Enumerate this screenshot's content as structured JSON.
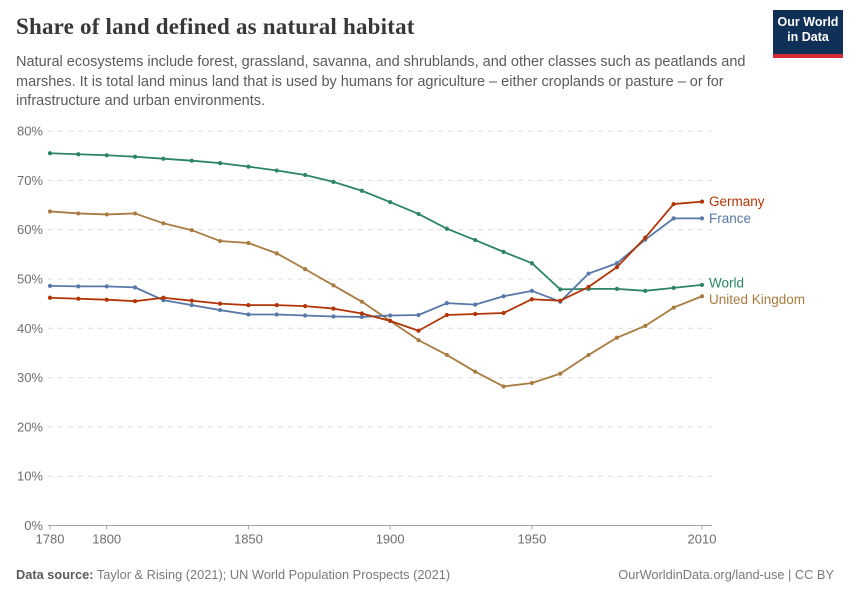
{
  "header": {
    "title": "Share of land defined as natural habitat",
    "subtitle_lines": [
      "Natural ecosystems include forest, grassland, savanna, and shrublands, and other classes such as peatlands and",
      "marshes. It is total land minus land that is used by humans for agriculture – either croplands or pasture – or for",
      "infrastructure and urban environments."
    ],
    "logo": {
      "line1": "Our World",
      "line2": "in Data",
      "bg_color": "#103057",
      "stripe_color": "#d42b37"
    }
  },
  "chart_data": {
    "type": "line",
    "title": "Share of land defined as natural habitat",
    "xlabel": "",
    "ylabel": "",
    "ylim": [
      0,
      80
    ],
    "yticks": [
      0,
      10,
      20,
      30,
      40,
      50,
      60,
      70,
      80
    ],
    "ytick_suffix": "%",
    "xticks": [
      1780,
      1800,
      1850,
      1900,
      1950,
      2010
    ],
    "grid": "horizontal-dashed",
    "legend_position": "right-line-end-labels",
    "x": [
      1780,
      1790,
      1800,
      1810,
      1820,
      1830,
      1840,
      1850,
      1860,
      1870,
      1880,
      1890,
      1900,
      1910,
      1920,
      1930,
      1940,
      1950,
      1960,
      1970,
      1980,
      1990,
      2000,
      2010
    ],
    "series": [
      {
        "name": "World",
        "color": "#2c8465",
        "label_dy": -2,
        "values": [
          75.5,
          75.3,
          75.1,
          74.8,
          74.4,
          74.0,
          73.5,
          72.8,
          72.0,
          71.1,
          69.7,
          67.9,
          65.6,
          63.2,
          60.2,
          57.9,
          55.5,
          53.2,
          47.9,
          48.0,
          48.0,
          47.6,
          48.2,
          48.8
        ]
      },
      {
        "name": "United Kingdom",
        "color": "#a87b42",
        "label_dy": 3,
        "values": [
          63.7,
          63.3,
          63.1,
          63.3,
          61.3,
          59.9,
          57.7,
          57.3,
          55.2,
          52.0,
          48.7,
          45.4,
          41.5,
          37.6,
          34.6,
          31.2,
          28.2,
          28.9,
          30.8,
          34.6,
          38.1,
          40.5,
          44.2,
          46.5
        ]
      },
      {
        "name": "France",
        "color": "#5879a8",
        "label_dy": 0,
        "values": [
          48.6,
          48.5,
          48.5,
          48.3,
          45.7,
          44.7,
          43.7,
          42.8,
          42.8,
          42.6,
          42.4,
          42.3,
          42.6,
          42.7,
          45.1,
          44.8,
          46.5,
          47.6,
          45.4,
          51.1,
          53.2,
          58.0,
          62.3,
          62.3
        ]
      },
      {
        "name": "Germany",
        "color": "#b13507",
        "label_dy": 0,
        "values": [
          46.2,
          46.0,
          45.8,
          45.5,
          46.2,
          45.6,
          45.0,
          44.7,
          44.7,
          44.5,
          44.0,
          43.0,
          41.5,
          39.5,
          42.7,
          42.9,
          43.1,
          45.9,
          45.6,
          48.4,
          52.4,
          58.4,
          65.2,
          65.7
        ]
      }
    ]
  },
  "footer": {
    "datasource_label": "Data source:",
    "datasource_text": " Taylor & Rising (2021); UN World Population Prospects (2021)",
    "link_text": "OurWorldinData.org/land-use | CC BY"
  }
}
